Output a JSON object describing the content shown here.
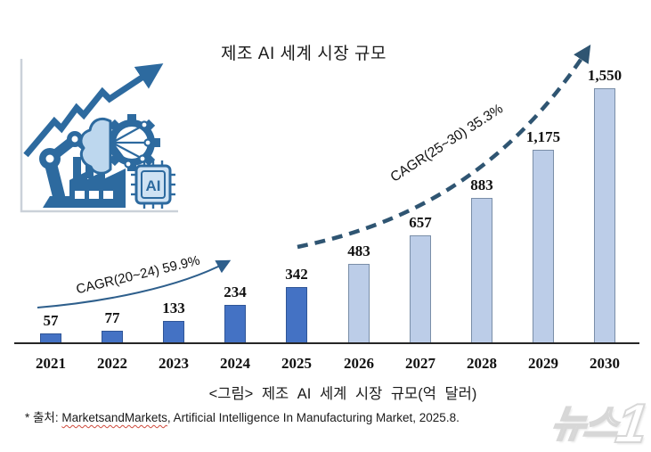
{
  "title": "제조 AI 세계 시장 규모",
  "chart_data": {
    "type": "bar",
    "title": "제조 AI 세계 시장 규모",
    "unit": "억 달러",
    "categories": [
      "2021",
      "2022",
      "2023",
      "2024",
      "2025",
      "2026",
      "2027",
      "2028",
      "2029",
      "2030"
    ],
    "values": [
      57,
      77,
      133,
      234,
      342,
      483,
      657,
      883,
      1175,
      1550
    ],
    "value_labels": [
      "57",
      "77",
      "133",
      "234",
      "342",
      "483",
      "657",
      "883",
      "1,175",
      "1,550"
    ],
    "ylim": [
      0,
      1600
    ],
    "grid": false,
    "legend": "none",
    "series_note": "2021-2025 dark blue bars, 2026-2030 light blue bars",
    "bar_colors": {
      "dark_fill": "#4472C4",
      "dark_border": "#2F5597",
      "light_fill": "#BCCDE8",
      "light_border": "#7A8EA8"
    },
    "annotations": [
      {
        "label": "CAGR(20~24) 59.9%",
        "style": "solid-curved-arrow",
        "span": [
          "2021",
          "2024"
        ]
      },
      {
        "label": "CAGR(25~30) 35.3%",
        "style": "dashed-curved-arrow",
        "span": [
          "2025",
          "2030"
        ]
      }
    ]
  },
  "caption": "<그림> 제조 AI 세계 시장 규모(억 달러)",
  "source": {
    "prefix": "* 출처: ",
    "underlined": "MarketsandMarkets",
    "rest": ", Artificial Intelligence In Manufacturing Market, 2025.8."
  },
  "watermark": {
    "text": "뉴스",
    "digit": "1"
  },
  "illustration": {
    "chip_label": "AI"
  },
  "colors": {
    "arrow": "#2E5F8C",
    "illustration_dark": "#2D6A9F",
    "illustration_light": "#BDD7EE",
    "axis": "#262626"
  }
}
